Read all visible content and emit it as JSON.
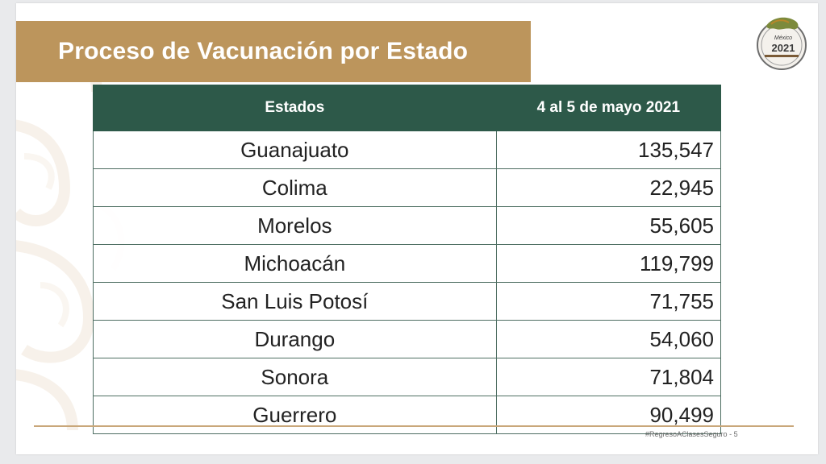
{
  "slide": {
    "title": "Proceso de Vacunación por Estado",
    "footer_hashtag": "#RegresoAClasesSeguro",
    "page_number": "5"
  },
  "logo": {
    "main": "2021",
    "sub": "México",
    "icon": "mexico-2021-seal-icon"
  },
  "table": {
    "headers": [
      "Estados",
      "4 al 5 de mayo 2021"
    ],
    "rows": [
      {
        "state": "Guanajuato",
        "value": "135,547"
      },
      {
        "state": "Colima",
        "value": "22,945"
      },
      {
        "state": "Morelos",
        "value": "55,605"
      },
      {
        "state": "Michoacán",
        "value": "119,799"
      },
      {
        "state": "San Luis Potosí",
        "value": "71,755"
      },
      {
        "state": "Durango",
        "value": "54,060"
      },
      {
        "state": "Sonora",
        "value": "71,804"
      },
      {
        "state": "Guerrero",
        "value": "90,499"
      }
    ]
  },
  "colors": {
    "banner": "#bc955c",
    "header": "#2d5949",
    "footer_line": "#c9a77a"
  }
}
